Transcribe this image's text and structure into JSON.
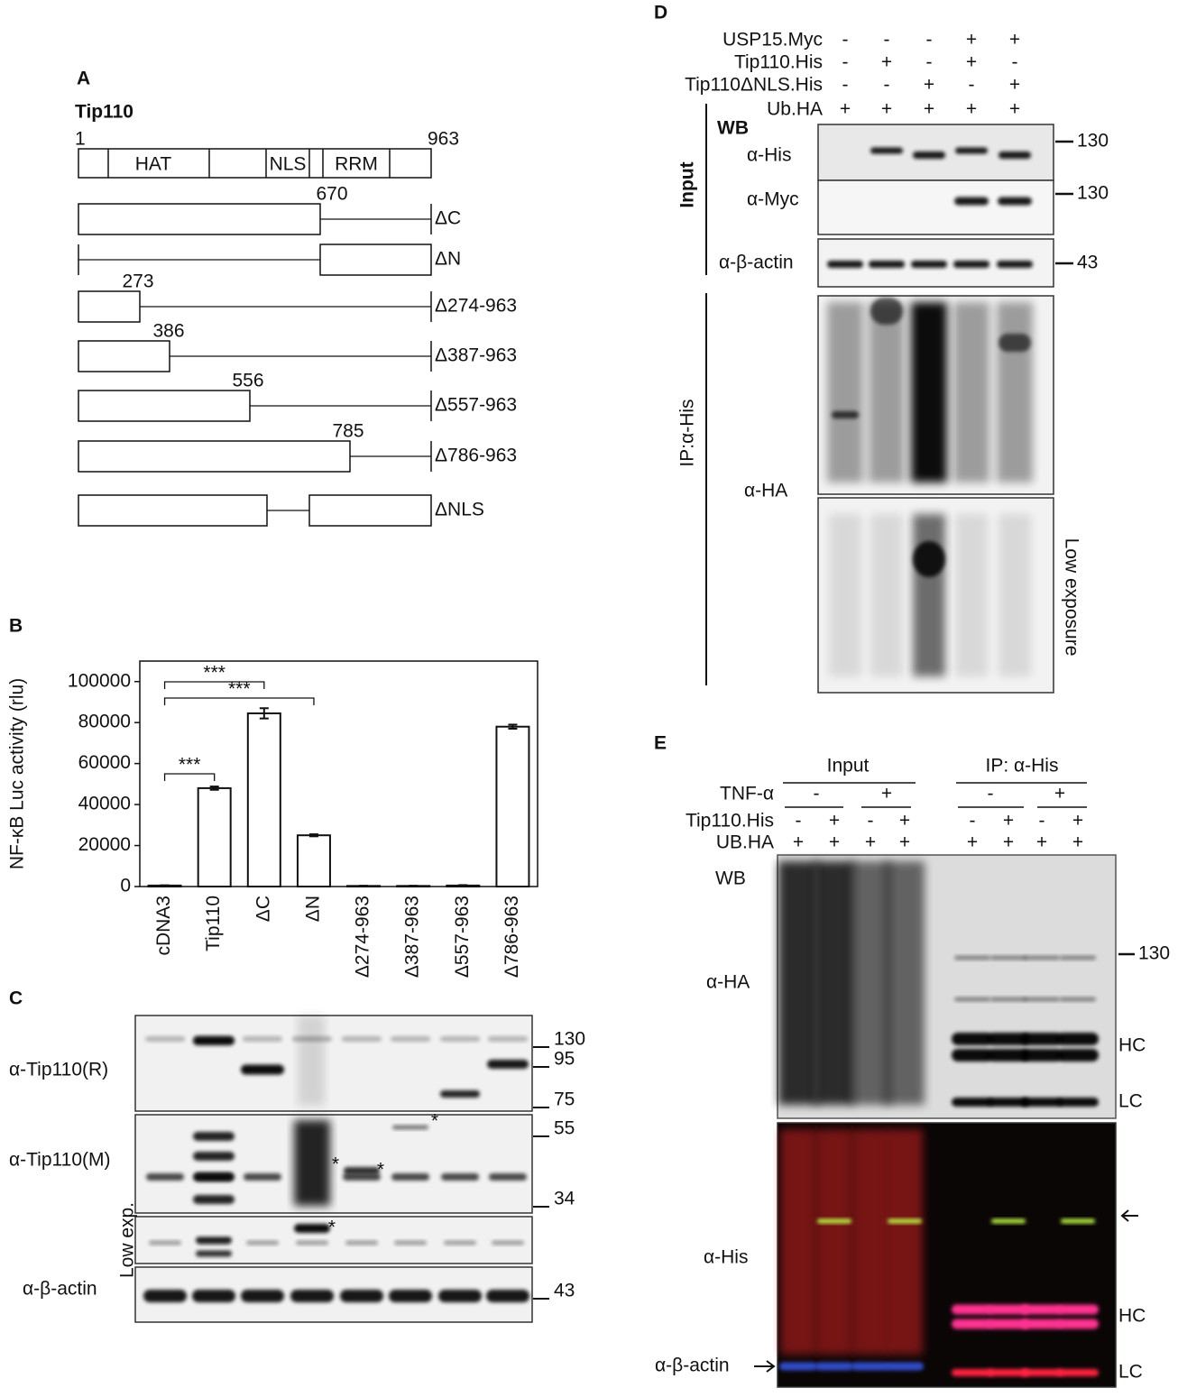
{
  "panel_a": {
    "label": "A",
    "title": "Tip110",
    "start": 1,
    "end": 963,
    "domains": [
      "HAT",
      "NLS",
      "RRM"
    ],
    "constructs": [
      {
        "name": "ΔC",
        "end": 670
      },
      {
        "name": "ΔN"
      },
      {
        "name": "Δ274-963",
        "end": 273
      },
      {
        "name": "Δ387-963",
        "end": 386
      },
      {
        "name": "Δ557-963",
        "end": 556
      },
      {
        "name": "Δ786-963",
        "end": 785
      },
      {
        "name": "ΔNLS"
      }
    ]
  },
  "chart_data": {
    "type": "bar",
    "label": "B",
    "y_label": "NF-κB Luc activity (rlu)",
    "categories": [
      "cDNA3",
      "Tip110",
      "ΔC",
      "ΔN",
      "Δ274-963",
      "Δ387-963",
      "Δ557-963",
      "Δ786-963"
    ],
    "values": [
      500,
      48000,
      84500,
      25000,
      300,
      300,
      500,
      78000
    ],
    "errors": [
      100,
      800,
      2500,
      500,
      100,
      100,
      200,
      1000
    ],
    "color": "#ffffff",
    "ylim": [
      0,
      110000
    ],
    "yticks": [
      0,
      20000,
      40000,
      60000,
      80000,
      100000
    ],
    "significance": [
      "***",
      "***",
      "***"
    ]
  },
  "panel_c": {
    "label": "C",
    "blots": [
      "α-Tip110(R)",
      "α-Tip110(M)",
      "Low exp.",
      "α-β-actin"
    ],
    "markers": [
      130,
      95,
      75,
      55,
      34,
      43
    ],
    "asterisks": [
      "*",
      "*",
      "*",
      "*",
      "*"
    ]
  },
  "panel_d": {
    "label": "D",
    "conditions": [
      {
        "name": "USP15.Myc",
        "signs": [
          "-",
          "-",
          "-",
          "+",
          "+"
        ]
      },
      {
        "name": "Tip110.His",
        "signs": [
          "-",
          "+",
          "-",
          "+",
          "-"
        ]
      },
      {
        "name": "Tip110ΔNLS.His",
        "signs": [
          "-",
          "-",
          "+",
          "-",
          "+"
        ]
      },
      {
        "name": "Ub.HA",
        "signs": [
          "+",
          "+",
          "+",
          "+",
          "+"
        ]
      }
    ],
    "method": "WB",
    "groups": [
      "Input",
      "IP:α-His"
    ],
    "blots": [
      "α-His",
      "α-Myc",
      "α-β-actin",
      "α-HA"
    ],
    "markers": [
      130,
      130,
      43
    ],
    "note": "Low exposure"
  },
  "panel_e": {
    "label": "E",
    "groups": [
      "Input",
      "IP: α-His"
    ],
    "treatment": {
      "name": "TNF-α",
      "signs": [
        "-",
        "+",
        "-",
        "+"
      ]
    },
    "conditions": [
      {
        "name": "Tip110.His",
        "signs": [
          "-",
          "+",
          "-",
          "+",
          "-",
          "+",
          "-",
          "+"
        ]
      },
      {
        "name": "UB.HA",
        "signs": [
          "+",
          "+",
          "+",
          "+",
          "+",
          "+",
          "+",
          "+"
        ]
      }
    ],
    "method": "WB",
    "blots": [
      "α-HA",
      "α-His",
      "α-β-actin"
    ],
    "marker": 130,
    "heavy_chain": "HC",
    "light_chain": "LC"
  }
}
